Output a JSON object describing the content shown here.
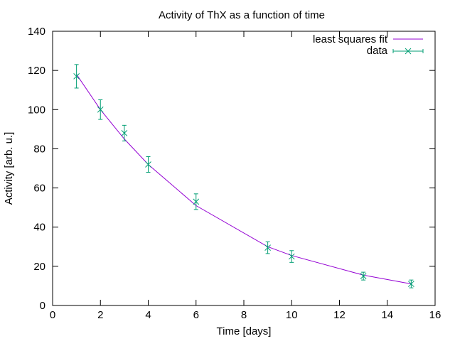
{
  "chart_data": {
    "type": "scatter",
    "title": "Activity of ThX as a function of time",
    "xlabel": "Time [days]",
    "ylabel": "Activity [arb. u.]",
    "xlim": [
      0,
      16
    ],
    "ylim": [
      0,
      140
    ],
    "xticks": [
      0,
      2,
      4,
      6,
      8,
      10,
      12,
      14,
      16
    ],
    "yticks": [
      0,
      20,
      40,
      60,
      80,
      100,
      120,
      140
    ],
    "xtick_labels": [
      "0",
      "2",
      "4",
      "6",
      "8",
      "10",
      "12",
      "14",
      "16"
    ],
    "ytick_labels": [
      "0",
      "20",
      "40",
      "60",
      "80",
      "100",
      "120",
      "140"
    ],
    "grid": false,
    "legend_position": "top-right",
    "series": [
      {
        "name": "least squares fit",
        "kind": "line",
        "color": "#9400d3",
        "x": [
          1,
          2,
          3,
          4,
          6,
          9,
          10,
          13,
          15
        ],
        "y": [
          118,
          100,
          85,
          72,
          51,
          30,
          25.5,
          15.5,
          11
        ]
      },
      {
        "name": "data",
        "kind": "points_with_errorbars",
        "color": "#009e73",
        "marker": "x",
        "x": [
          1,
          2,
          3,
          4,
          6,
          9,
          10,
          13,
          15
        ],
        "y": [
          117,
          100,
          88,
          72,
          53,
          29.5,
          25,
          15,
          11
        ],
        "yerr": [
          6,
          5,
          4,
          4,
          4,
          3,
          3,
          2,
          2
        ]
      }
    ]
  }
}
